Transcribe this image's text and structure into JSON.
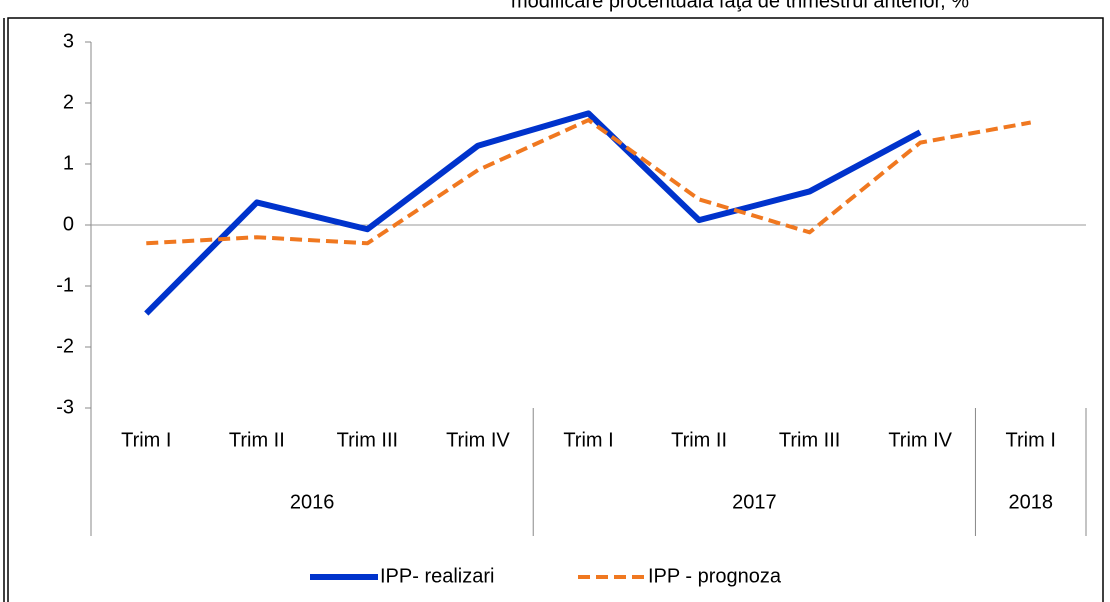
{
  "chart_data": {
    "type": "line",
    "subtitle": "modificare procentuală faţă de trimestrul anterior, %",
    "categories": [
      "Trim I",
      "Trim II",
      "Trim III",
      "Trim IV",
      "Trim I",
      "Trim II",
      "Trim III",
      "Trim IV",
      "Trim I"
    ],
    "groups": [
      {
        "label": "2016",
        "size": 4
      },
      {
        "label": "2017",
        "size": 4
      },
      {
        "label": "2018",
        "size": 1
      }
    ],
    "series": [
      {
        "name": "IPP- realizari",
        "color": "#0033cc",
        "dash": false,
        "values": [
          -1.45,
          0.37,
          -0.07,
          1.3,
          1.83,
          0.08,
          0.55,
          1.52,
          null
        ]
      },
      {
        "name": "IPP - prognoza",
        "color": "#f07820",
        "dash": true,
        "values": [
          -0.3,
          -0.2,
          -0.3,
          0.9,
          1.72,
          0.42,
          -0.12,
          1.35,
          1.68
        ]
      }
    ],
    "ylim": [
      -3,
      3
    ],
    "yticks": [
      -3,
      -2,
      -1,
      0,
      1,
      2,
      3
    ],
    "legend": "bottom"
  }
}
